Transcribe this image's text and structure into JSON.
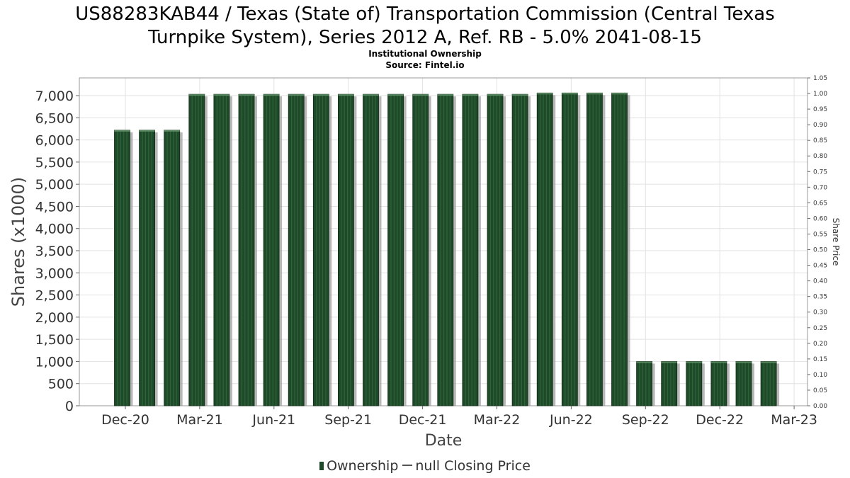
{
  "chart_data": {
    "type": "bar",
    "title_line1": "US88283KAB44 / Texas (State of) Transportation Commission (Central Texas",
    "title_line2": "Turnpike System), Series 2012 A, Ref. RB - 5.0% 2041-08-15",
    "subtitle_line1": "Institutional Ownership",
    "subtitle_line2": "Source: Fintel.io",
    "xlabel": "Date",
    "ylabel": "Shares (x1000)",
    "y2label": "Share Price",
    "ylim": [
      0,
      7400
    ],
    "y_ticks": [
      0,
      500,
      1000,
      1500,
      2000,
      2500,
      3000,
      3500,
      4000,
      4500,
      5000,
      5500,
      6000,
      6500,
      7000
    ],
    "y_tick_labels": [
      "0",
      "500",
      "1,000",
      "1,500",
      "2,000",
      "2,500",
      "3,000",
      "3,500",
      "4,000",
      "4,500",
      "5,000",
      "5,500",
      "6,000",
      "6,500",
      "7,000"
    ],
    "y2lim": [
      0,
      1.05
    ],
    "y2_ticks": [
      0.0,
      0.05,
      0.1,
      0.15,
      0.2,
      0.25,
      0.3,
      0.35,
      0.4,
      0.45,
      0.5,
      0.55,
      0.6,
      0.65,
      0.7,
      0.75,
      0.8,
      0.85,
      0.9,
      0.95,
      1.0,
      1.05
    ],
    "y2_tick_labels": [
      "0.00",
      "0.05",
      "0.10",
      "0.15",
      "0.20",
      "0.25",
      "0.30",
      "0.35",
      "0.40",
      "0.45",
      "0.50",
      "0.55",
      "0.60",
      "0.65",
      "0.70",
      "0.75",
      "0.80",
      "0.85",
      "0.90",
      "0.95",
      "1.00",
      "1.05"
    ],
    "x_tick_labels": [
      "Dec-20",
      "Mar-21",
      "Jun-21",
      "Sep-21",
      "Dec-21",
      "Mar-22",
      "Jun-22",
      "Sep-22",
      "Dec-22",
      "Mar-23"
    ],
    "grid": true,
    "legend_position": "bottom",
    "series": [
      {
        "name": "Ownership",
        "color": "#1f4a29",
        "values": [
          6220,
          6220,
          6220,
          7030,
          7030,
          7030,
          7030,
          7030,
          7030,
          7030,
          7030,
          7030,
          7030,
          7030,
          7030,
          7030,
          7030,
          7060,
          7060,
          7060,
          7060,
          1000,
          1000,
          1000,
          1000,
          1000,
          1000
        ]
      },
      {
        "name": "null Closing Price",
        "color": "#555555",
        "values": []
      }
    ]
  }
}
